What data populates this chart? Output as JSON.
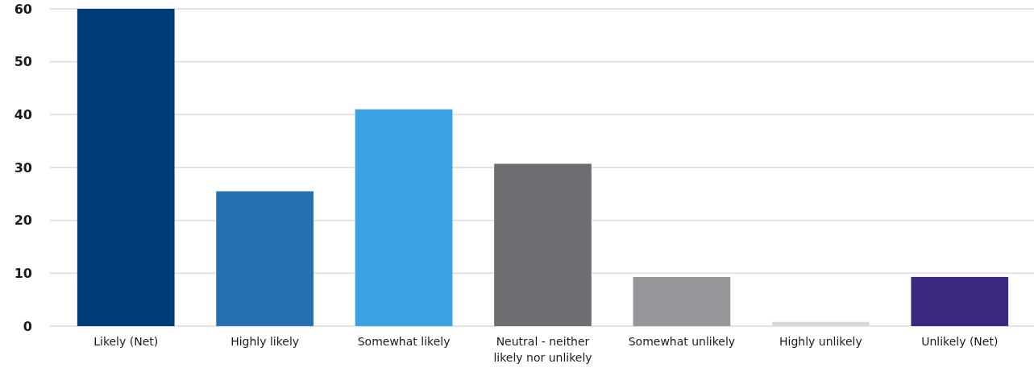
{
  "chart_data": {
    "type": "bar",
    "categories": [
      "Likely (Net)",
      "Highly likely",
      "Somewhat likely",
      "Neutral - neither likely nor unlikely",
      "Somewhat unlikely",
      "Highly unlikely",
      "Unlikely (Net)"
    ],
    "values": [
      60,
      25.5,
      41,
      30.7,
      9.3,
      0.8,
      9.3
    ],
    "colors": [
      "#003b7a",
      "#2570b0",
      "#3ba3e2",
      "#6d6e72",
      "#96979a",
      "#d9d9d9",
      "#3d2880"
    ],
    "ylim": [
      0,
      60
    ],
    "yticks": [
      0,
      10,
      20,
      30,
      40,
      50,
      60
    ],
    "grid": "y"
  }
}
